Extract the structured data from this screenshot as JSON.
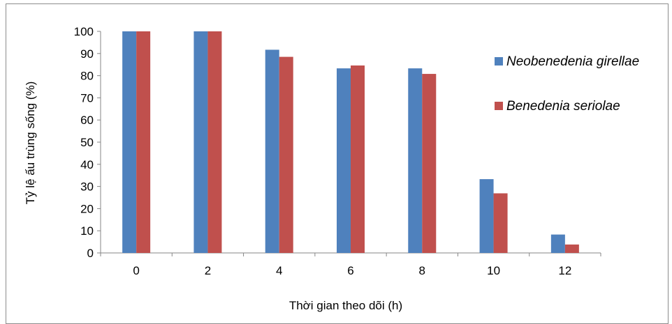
{
  "chart_data": {
    "type": "bar",
    "title": "",
    "xlabel": "Thời gian theo dõi (h)",
    "ylabel": "Tỷ lệ ấu trùng sống (%)",
    "categories": [
      "0",
      "2",
      "4",
      "6",
      "8",
      "10",
      "12"
    ],
    "ylim": [
      0,
      100
    ],
    "yticks": [
      "0",
      "10",
      "20",
      "30",
      "40",
      "50",
      "60",
      "70",
      "80",
      "90",
      "100"
    ],
    "grid": false,
    "legend_position": "right",
    "series": [
      {
        "name": "Neobenedenia girellae",
        "color": "#4F81BD",
        "values": [
          100,
          100,
          91.7,
          83.3,
          83.3,
          33.3,
          8.3
        ]
      },
      {
        "name": "Benedenia seriolae",
        "color": "#C0504D",
        "values": [
          100,
          100,
          88.5,
          84.6,
          80.8,
          26.9,
          3.8
        ]
      }
    ]
  }
}
